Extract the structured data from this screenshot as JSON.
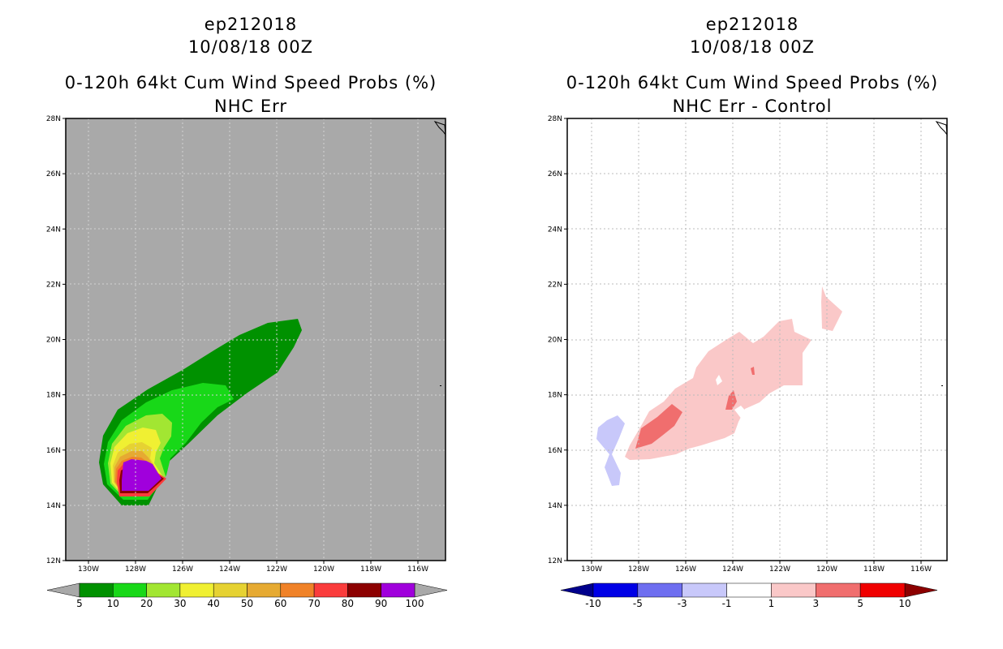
{
  "left_panel": {
    "title_line1": "ep212018",
    "title_line2": "10/08/18 00Z",
    "title_line3": "0-120h 64kt Cum Wind Speed Probs (%)",
    "title_line4": "NHC Err",
    "background_color": "#a9a9a9"
  },
  "right_panel": {
    "title_line1": "ep212018",
    "title_line2": "10/08/18 00Z",
    "title_line3": "0-120h 64kt Cum Wind Speed Probs (%)",
    "title_line4": "NHC Err - Control",
    "background_color": "#ffffff"
  },
  "map_axes": {
    "lat_labels": [
      "28N",
      "26N",
      "24N",
      "22N",
      "20N",
      "18N",
      "16N",
      "14N",
      "12N"
    ],
    "lon_labels": [
      "130W",
      "128W",
      "126W",
      "124W",
      "122W",
      "120W",
      "118W",
      "116W"
    ]
  },
  "left_colorbar": {
    "colors": [
      "#009100",
      "#18d818",
      "#a2e632",
      "#f0f032",
      "#e6d232",
      "#e6aa32",
      "#f08228",
      "#fa3c3c",
      "#8c0000",
      "#a000dc"
    ],
    "labels": [
      "5",
      "10",
      "20",
      "30",
      "40",
      "50",
      "60",
      "70",
      "80",
      "90",
      "100"
    ],
    "under_color": "#a9a9a9",
    "over_color": "#a9a9a9"
  },
  "right_colorbar": {
    "colors": [
      "#0000e6",
      "#6e6ef0",
      "#c8c8fa",
      "#ffffff",
      "#fac8c8",
      "#f06e6e",
      "#f00000"
    ],
    "labels": [
      "-10",
      "-5",
      "-3",
      "-1",
      "1",
      "3",
      "5",
      "10"
    ],
    "under_color": "#00008c",
    "over_color": "#8c0000"
  }
}
